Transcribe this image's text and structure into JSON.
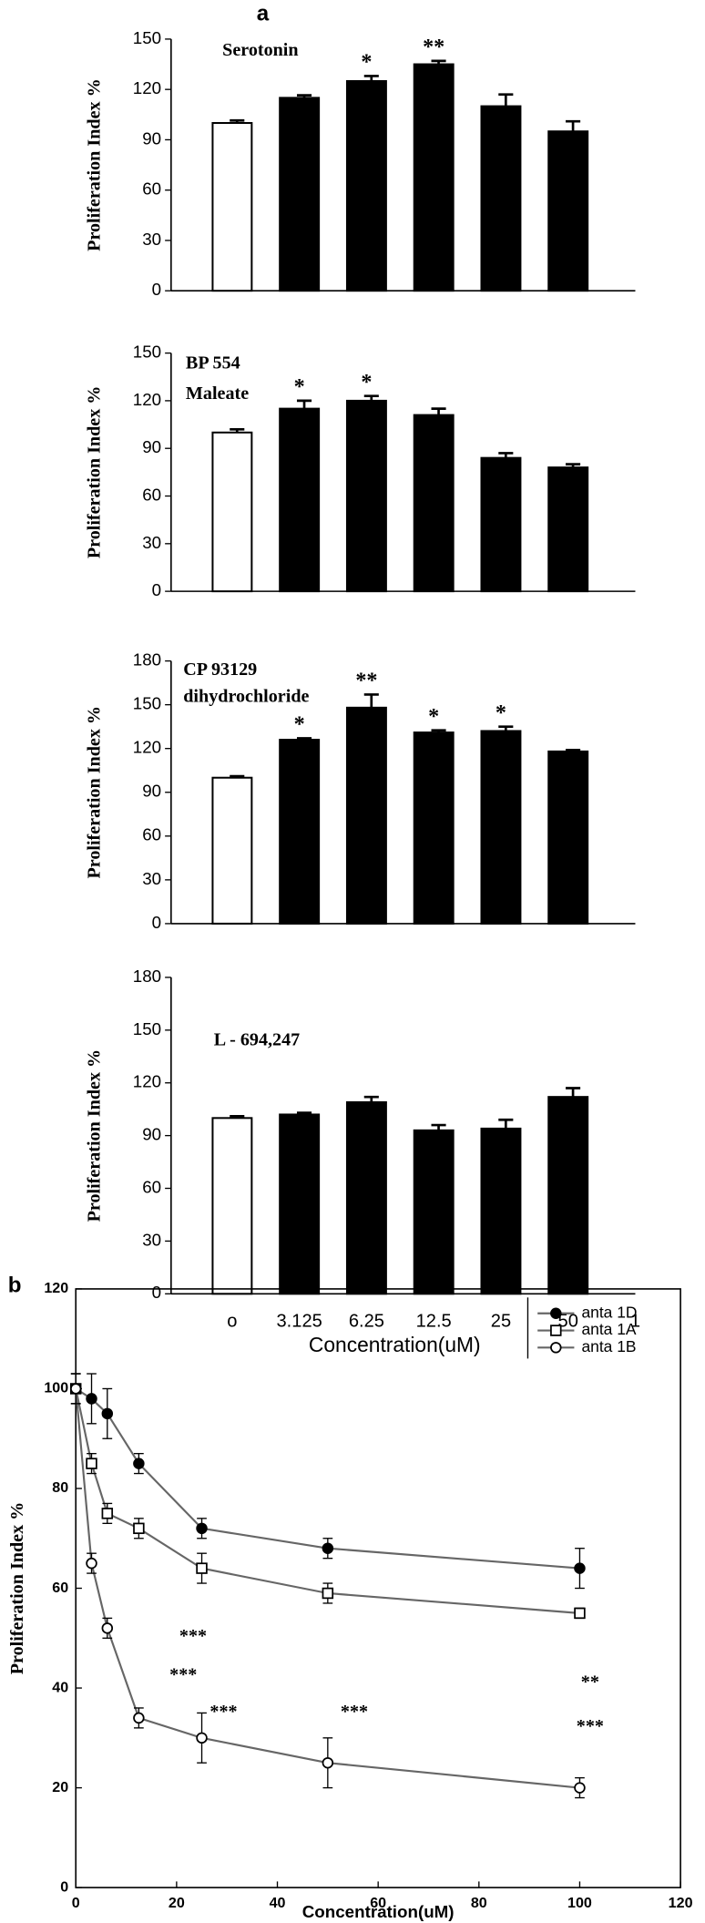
{
  "chart_data": [
    {
      "type": "bar",
      "panel_label": "a",
      "title": [
        "Serotonin"
      ],
      "ylabel": "Proliferation Index %",
      "categories": [
        null,
        null,
        null,
        null,
        null,
        null
      ],
      "values": [
        100,
        115,
        125,
        135,
        110,
        95
      ],
      "errors": [
        1.5,
        1.5,
        3,
        2,
        7,
        6
      ],
      "star_labels": [
        null,
        null,
        "*",
        "**",
        null,
        null
      ],
      "bar_colors": [
        "#ffffff",
        "#000000",
        "#000000",
        "#000000",
        "#000000",
        "#000000"
      ],
      "ylim": [
        0,
        150
      ],
      "yticks": [
        0,
        30,
        60,
        90,
        120,
        150
      ]
    },
    {
      "type": "bar",
      "title": [
        "BP 554",
        "Maleate"
      ],
      "ylabel": "Proliferation Index %",
      "categories": [
        null,
        null,
        null,
        null,
        null,
        null
      ],
      "values": [
        100,
        115,
        120,
        111,
        84,
        78
      ],
      "errors": [
        2,
        5,
        3,
        4,
        3,
        2
      ],
      "star_labels": [
        null,
        "*",
        "*",
        null,
        null,
        null
      ],
      "bar_colors": [
        "#ffffff",
        "#000000",
        "#000000",
        "#000000",
        "#000000",
        "#000000"
      ],
      "ylim": [
        0,
        150
      ],
      "yticks": [
        0,
        30,
        60,
        90,
        120,
        150
      ]
    },
    {
      "type": "bar",
      "title": [
        "CP 93129",
        "dihydrochloride"
      ],
      "ylabel": "Proliferation Index %",
      "categories": [
        null,
        null,
        null,
        null,
        null,
        null
      ],
      "values": [
        100,
        126,
        148,
        131,
        132,
        118
      ],
      "errors": [
        1,
        1,
        9,
        1.5,
        3,
        1
      ],
      "star_labels": [
        null,
        "*",
        "**",
        "*",
        "*",
        null
      ],
      "bar_colors": [
        "#ffffff",
        "#000000",
        "#000000",
        "#000000",
        "#000000",
        "#000000"
      ],
      "ylim": [
        0,
        180
      ],
      "yticks": [
        0,
        30,
        60,
        90,
        120,
        150,
        180
      ]
    },
    {
      "type": "bar",
      "title": [
        "L - 694,247"
      ],
      "ylabel": "Proliferation Index %",
      "xlabel": "Concentration(uM)",
      "categories": [
        "o",
        "3.125",
        "6.25",
        "12.5",
        "25",
        "50",
        "1"
      ],
      "values": [
        100,
        102,
        109,
        93,
        94,
        112,
        null
      ],
      "errors": [
        1,
        1,
        3,
        3,
        5,
        5,
        null
      ],
      "star_labels": [
        null,
        null,
        null,
        null,
        null,
        null,
        null
      ],
      "bar_colors": [
        "#ffffff",
        "#000000",
        "#000000",
        "#000000",
        "#000000",
        "#000000",
        "#000000"
      ],
      "ylim": [
        0,
        180
      ],
      "yticks": [
        0,
        30,
        60,
        90,
        120,
        150,
        180
      ]
    },
    {
      "type": "line",
      "panel_label": "b",
      "xlabel": "Concentration(uM)",
      "ylabel": "Proliferation Index %",
      "x": [
        0,
        3.125,
        6.25,
        12.5,
        25,
        50,
        100
      ],
      "series": [
        {
          "name": "anta 1D",
          "color": "#000000",
          "marker": "filled-circle",
          "values": [
            100,
            98,
            95,
            85,
            72,
            68,
            64
          ],
          "errors": [
            3,
            5,
            5,
            2,
            2,
            2,
            4
          ]
        },
        {
          "name": "anta 1A",
          "color": "#000000",
          "marker": "open-square",
          "values": [
            100,
            85,
            75,
            72,
            64,
            59,
            55
          ],
          "errors": [
            3,
            2,
            2,
            2,
            3,
            2,
            1
          ]
        },
        {
          "name": "anta 1B",
          "color": "#000000",
          "marker": "open-circle",
          "values": [
            100,
            65,
            52,
            34,
            30,
            25,
            20
          ],
          "errors": [
            3,
            2,
            2,
            2,
            5,
            5,
            2
          ]
        }
      ],
      "annotations": [
        "***",
        "***",
        "***",
        "***",
        "**",
        "***"
      ],
      "xlim": [
        0,
        120
      ],
      "xticks": [
        0,
        20,
        40,
        60,
        80,
        100,
        120
      ],
      "ylim": [
        0,
        120
      ],
      "yticks": [
        0,
        20,
        40,
        60,
        80,
        100,
        120
      ]
    }
  ]
}
